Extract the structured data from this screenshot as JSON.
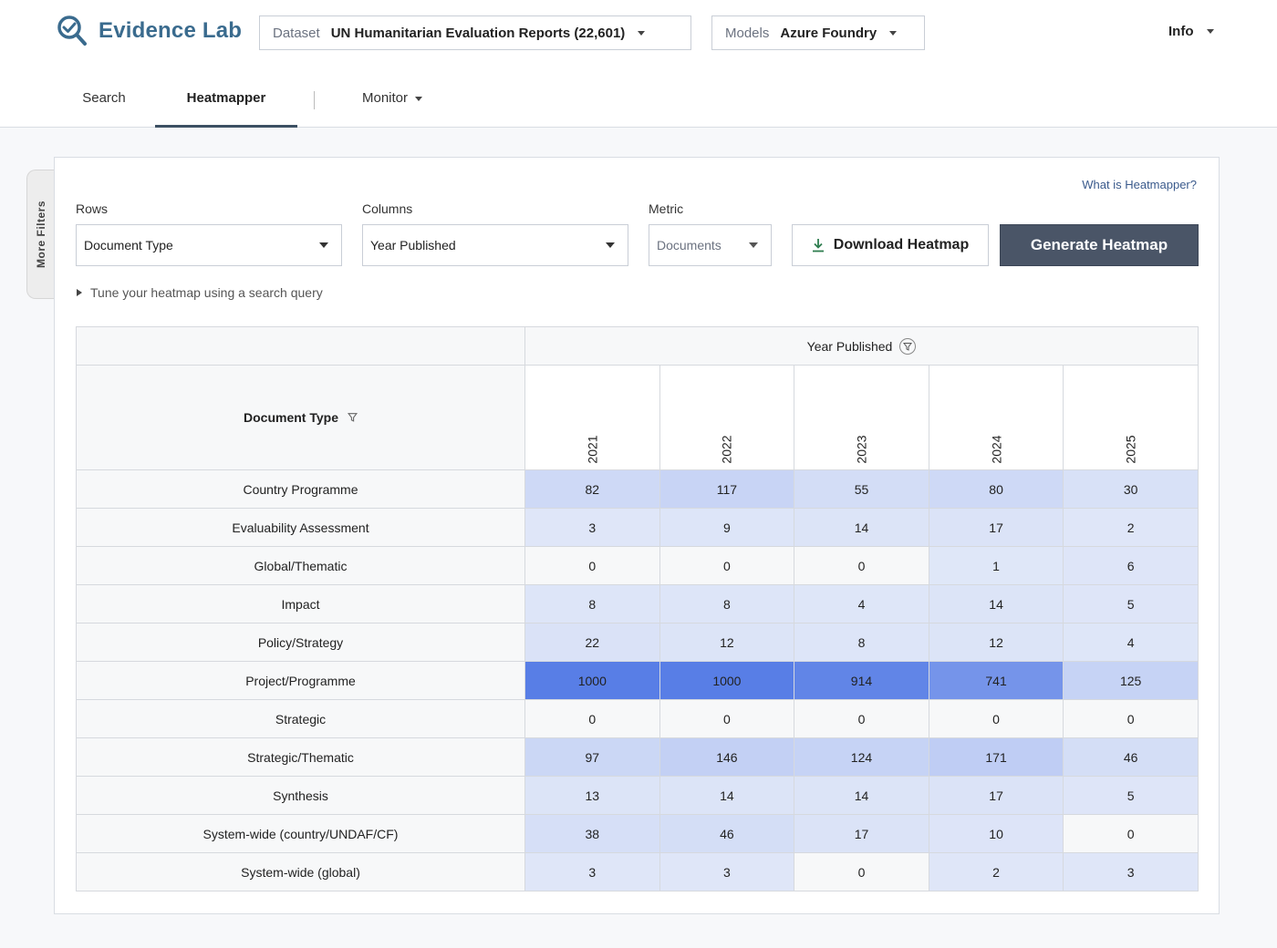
{
  "app": {
    "title": "Evidence Lab"
  },
  "header": {
    "dataset_label": "Dataset",
    "dataset_value": "UN Humanitarian Evaluation Reports (22,601)",
    "models_label": "Models",
    "models_value": "Azure Foundry",
    "info_label": "Info"
  },
  "tabs": [
    {
      "label": "Search"
    },
    {
      "label": "Heatmapper"
    },
    {
      "label": "Monitor"
    }
  ],
  "sidebar": {
    "more_filters": "More Filters"
  },
  "controls": {
    "what_link": "What is Heatmapper?",
    "rows_label": "Rows",
    "rows_value": "Document Type",
    "columns_label": "Columns",
    "columns_value": "Year Published",
    "metric_label": "Metric",
    "metric_value": "Documents",
    "download_label": "Download Heatmap",
    "generate_label": "Generate Heatmap",
    "tune_label": "Tune your heatmap using a search query"
  },
  "heatmap": {
    "column_group": "Year Published",
    "row_header": "Document Type",
    "years": [
      "2021",
      "2022",
      "2023",
      "2024",
      "2025"
    ],
    "rows": [
      {
        "label": "Country Programme",
        "values": [
          "82",
          "117",
          "55",
          "80",
          "30"
        ]
      },
      {
        "label": "Evaluability Assessment",
        "values": [
          "3",
          "9",
          "14",
          "17",
          "2"
        ]
      },
      {
        "label": "Global/Thematic",
        "values": [
          "0",
          "0",
          "0",
          "1",
          "6"
        ]
      },
      {
        "label": "Impact",
        "values": [
          "8",
          "8",
          "4",
          "14",
          "5"
        ]
      },
      {
        "label": "Policy/Strategy",
        "values": [
          "22",
          "12",
          "8",
          "12",
          "4"
        ]
      },
      {
        "label": "Project/Programme",
        "values": [
          "1000",
          "1000",
          "914",
          "741",
          "125"
        ]
      },
      {
        "label": "Strategic",
        "values": [
          "0",
          "0",
          "0",
          "0",
          "0"
        ]
      },
      {
        "label": "Strategic/Thematic",
        "values": [
          "97",
          "146",
          "124",
          "171",
          "46"
        ]
      },
      {
        "label": "Synthesis",
        "values": [
          "13",
          "14",
          "14",
          "17",
          "5"
        ]
      },
      {
        "label": "System-wide (country/UNDAF/CF)",
        "values": [
          "38",
          "46",
          "17",
          "10",
          "0"
        ]
      },
      {
        "label": "System-wide (global)",
        "values": [
          "3",
          "3",
          "0",
          "2",
          "3"
        ]
      }
    ]
  },
  "colors": {
    "brand": "#3a6b8e",
    "primary_button": "#4a5567",
    "heat_low": "#e0e7f8",
    "heat_high": "#587ee6"
  }
}
